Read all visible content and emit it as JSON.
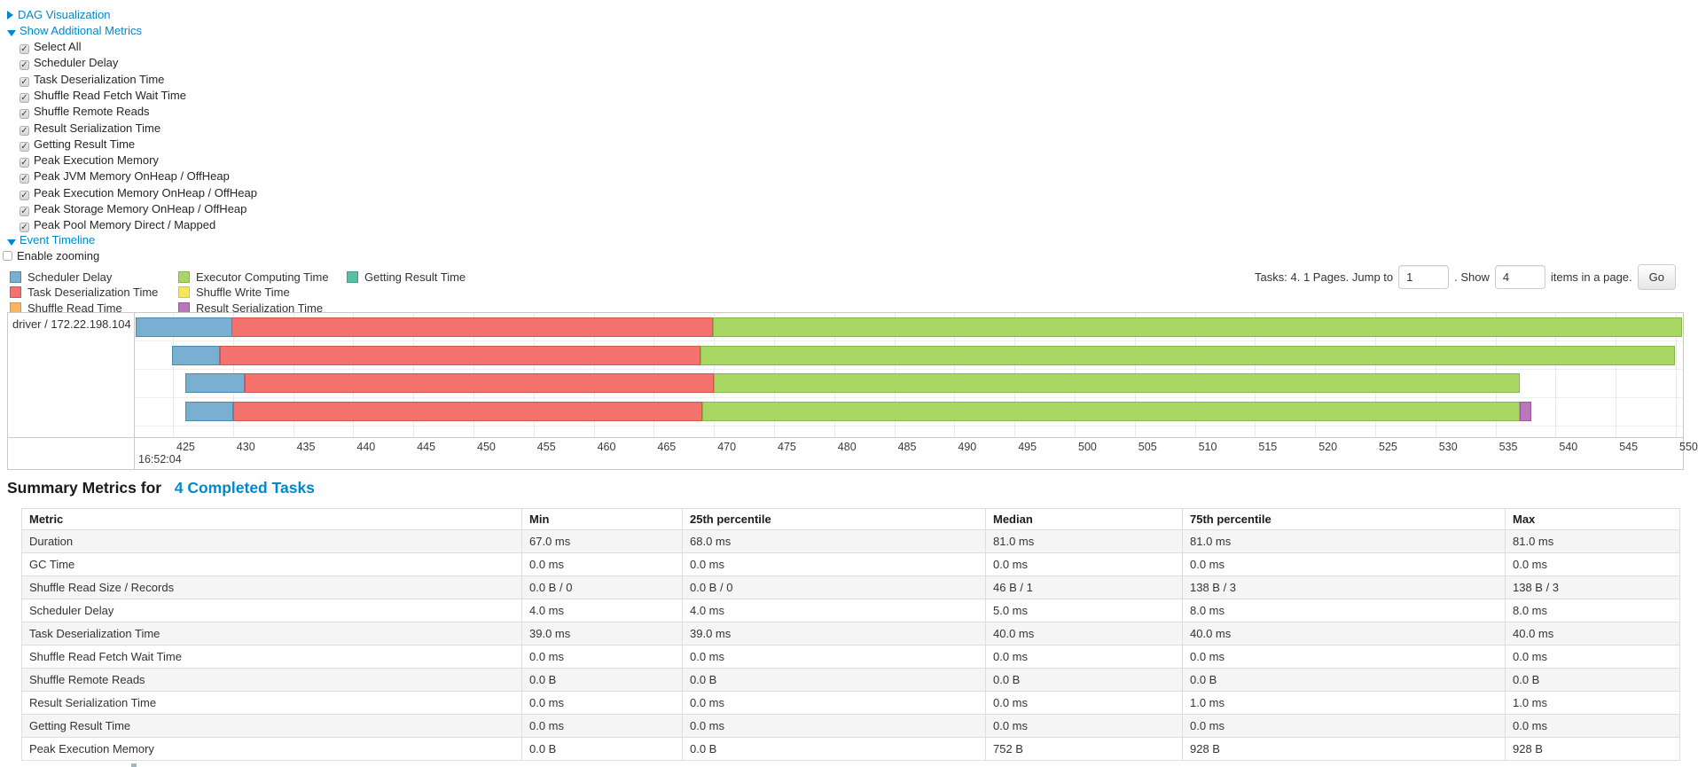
{
  "controls": {
    "dag_label": "DAG Visualization",
    "metrics_label": "Show Additional Metrics",
    "metric_items": [
      {
        "label": "Select All",
        "checked": true
      },
      {
        "label": "Scheduler Delay",
        "checked": true
      },
      {
        "label": "Task Deserialization Time",
        "checked": true
      },
      {
        "label": "Shuffle Read Fetch Wait Time",
        "checked": true
      },
      {
        "label": "Shuffle Remote Reads",
        "checked": true
      },
      {
        "label": "Result Serialization Time",
        "checked": true
      },
      {
        "label": "Getting Result Time",
        "checked": true
      },
      {
        "label": "Peak Execution Memory",
        "checked": true
      },
      {
        "label": "Peak JVM Memory OnHeap / OffHeap",
        "checked": true
      },
      {
        "label": "Peak Execution Memory OnHeap / OffHeap",
        "checked": true
      },
      {
        "label": "Peak Storage Memory OnHeap / OffHeap",
        "checked": true
      },
      {
        "label": "Peak Pool Memory Direct / Mapped",
        "checked": true
      }
    ],
    "event_timeline_label": "Event Timeline",
    "enable_zooming_label": "Enable zooming"
  },
  "pagination": {
    "prefix": "Tasks: 4. 1 Pages. Jump to",
    "jump_value": "1",
    "mid": ". Show",
    "show_value": "4",
    "suffix": "items in a page.",
    "go_label": "Go"
  },
  "colors": {
    "scheduler_delay": {
      "fill": "#79AFD0",
      "border": "#5189AD"
    },
    "task_deserialization": {
      "fill": "#F4726D",
      "border": "#D6544F"
    },
    "shuffle_read": {
      "fill": "#FBB45E",
      "border": "#DE9440"
    },
    "executor_computing": {
      "fill": "#A8D763",
      "border": "#87B748"
    },
    "shuffle_write": {
      "fill": "#F3E75E",
      "border": "#D4C83E"
    },
    "result_serialization": {
      "fill": "#BB77BB",
      "border": "#9C589C"
    },
    "getting_result": {
      "fill": "#58C0A2",
      "border": "#3BA182"
    }
  },
  "legend": [
    {
      "label": "Scheduler Delay",
      "key": "scheduler_delay",
      "col": 0,
      "row": 0
    },
    {
      "label": "Task Deserialization Time",
      "key": "task_deserialization",
      "col": 0,
      "row": 1
    },
    {
      "label": "Shuffle Read Time",
      "key": "shuffle_read",
      "col": 0,
      "row": 2
    },
    {
      "label": "Executor Computing Time",
      "key": "executor_computing",
      "col": 1,
      "row": 0
    },
    {
      "label": "Shuffle Write Time",
      "key": "shuffle_write",
      "col": 1,
      "row": 1
    },
    {
      "label": "Result Serialization Time",
      "key": "result_serialization",
      "col": 1,
      "row": 2
    },
    {
      "label": "Getting Result Time",
      "key": "getting_result",
      "col": 2,
      "row": 0
    }
  ],
  "timeline": {
    "row_label": "driver / 172.22.198.104",
    "axis": {
      "ticks": [
        425,
        430,
        435,
        440,
        445,
        450,
        455,
        460,
        465,
        470,
        475,
        480,
        485,
        490,
        495,
        500,
        505,
        510,
        515,
        520,
        525,
        530,
        535,
        540,
        545,
        550
      ],
      "major_label": "16:52:04"
    },
    "tasks": [
      {
        "start": 421.9,
        "segments": [
          [
            "scheduler_delay",
            8
          ],
          [
            "task_deserialization",
            40
          ],
          [
            "executor_computing",
            81
          ]
        ]
      },
      {
        "start": 424.9,
        "segments": [
          [
            "scheduler_delay",
            4
          ],
          [
            "task_deserialization",
            40
          ],
          [
            "executor_computing",
            81
          ]
        ]
      },
      {
        "start": 426.0,
        "segments": [
          [
            "scheduler_delay",
            5
          ],
          [
            "task_deserialization",
            39
          ],
          [
            "executor_computing",
            67
          ]
        ]
      },
      {
        "start": 426.0,
        "segments": [
          [
            "scheduler_delay",
            4
          ],
          [
            "task_deserialization",
            39
          ],
          [
            "executor_computing",
            68
          ],
          [
            "result_serialization",
            1
          ]
        ]
      }
    ]
  },
  "summary": {
    "title_prefix": "Summary Metrics for",
    "title_link": "4 Completed Tasks",
    "columns": [
      "Metric",
      "Min",
      "25th percentile",
      "Median",
      "75th percentile",
      "Max"
    ],
    "rows": [
      [
        "Duration",
        "67.0 ms",
        "68.0 ms",
        "81.0 ms",
        "81.0 ms",
        "81.0 ms"
      ],
      [
        "GC Time",
        "0.0 ms",
        "0.0 ms",
        "0.0 ms",
        "0.0 ms",
        "0.0 ms"
      ],
      [
        "Shuffle Read Size / Records",
        "0.0 B / 0",
        "0.0 B / 0",
        "46 B / 1",
        "138 B / 3",
        "138 B / 3"
      ],
      [
        "Scheduler Delay",
        "4.0 ms",
        "4.0 ms",
        "5.0 ms",
        "8.0 ms",
        "8.0 ms"
      ],
      [
        "Task Deserialization Time",
        "39.0 ms",
        "39.0 ms",
        "40.0 ms",
        "40.0 ms",
        "40.0 ms"
      ],
      [
        "Shuffle Read Fetch Wait Time",
        "0.0 ms",
        "0.0 ms",
        "0.0 ms",
        "0.0 ms",
        "0.0 ms"
      ],
      [
        "Shuffle Remote Reads",
        "0.0 B",
        "0.0 B",
        "0.0 B",
        "0.0 B",
        "0.0 B"
      ],
      [
        "Result Serialization Time",
        "0.0 ms",
        "0.0 ms",
        "0.0 ms",
        "1.0 ms",
        "1.0 ms"
      ],
      [
        "Getting Result Time",
        "0.0 ms",
        "0.0 ms",
        "0.0 ms",
        "0.0 ms",
        "0.0 ms"
      ],
      [
        "Peak Execution Memory",
        "0.0 B",
        "0.0 B",
        "752 B",
        "928 B",
        "928 B"
      ]
    ]
  },
  "chart_data": {
    "type": "timeline",
    "title": "Event Timeline",
    "group_label": "driver / 172.22.198.104",
    "x_axis": {
      "major": "16:52:04",
      "tick_ms": [
        425,
        550
      ],
      "tick_step": 5
    },
    "series_legend": [
      "Scheduler Delay",
      "Task Deserialization Time",
      "Shuffle Read Time",
      "Executor Computing Time",
      "Shuffle Write Time",
      "Result Serialization Time",
      "Getting Result Time"
    ],
    "tasks_ms_after_16_52_04": [
      {
        "start": 421.9,
        "scheduler_delay": 8,
        "task_deserialization": 40,
        "executor_computing": 81
      },
      {
        "start": 424.9,
        "scheduler_delay": 4,
        "task_deserialization": 40,
        "executor_computing": 81
      },
      {
        "start": 426.0,
        "scheduler_delay": 5,
        "task_deserialization": 39,
        "executor_computing": 67
      },
      {
        "start": 426.0,
        "scheduler_delay": 4,
        "task_deserialization": 39,
        "executor_computing": 68,
        "result_serialization": 1
      }
    ]
  }
}
